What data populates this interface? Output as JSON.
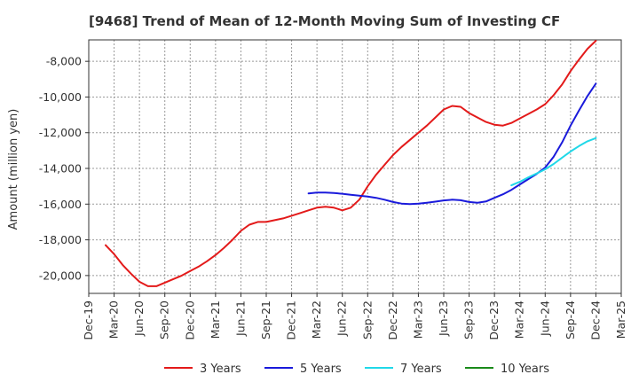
{
  "chart_data": {
    "type": "line",
    "title": "[9468]  Trend of Mean of 12-Month Moving Sum of Investing CF",
    "xlabel": "",
    "ylabel": "Amount (million yen)",
    "ylim": [
      -21000,
      -6800
    ],
    "yticks": [
      -20000,
      -18000,
      -16000,
      -14000,
      -12000,
      -10000,
      -8000
    ],
    "ytick_labels": [
      "-20,000",
      "-18,000",
      "-16,000",
      "-14,000",
      "-12,000",
      "-10,000",
      "-8,000"
    ],
    "xticks": [
      "Dec-19",
      "Mar-20",
      "Jun-20",
      "Sep-20",
      "Dec-20",
      "Mar-21",
      "Jun-21",
      "Sep-21",
      "Dec-21",
      "Mar-22",
      "Jun-22",
      "Sep-22",
      "Dec-22",
      "Mar-23",
      "Jun-23",
      "Sep-23",
      "Dec-23",
      "Mar-24",
      "Jun-24",
      "Sep-24",
      "Dec-24",
      "Mar-25"
    ],
    "grid": true,
    "legend_position": "bottom",
    "series": [
      {
        "name": "3 Years",
        "color": "#e31a1a",
        "x": [
          "2020-02",
          "2020-03",
          "2020-04",
          "2020-05",
          "2020-06",
          "2020-07",
          "2020-08",
          "2020-09",
          "2020-10",
          "2020-11",
          "2020-12",
          "2021-01",
          "2021-02",
          "2021-03",
          "2021-04",
          "2021-05",
          "2021-06",
          "2021-07",
          "2021-08",
          "2021-09",
          "2021-10",
          "2021-11",
          "2021-12",
          "2022-01",
          "2022-02",
          "2022-03",
          "2022-04",
          "2022-05",
          "2022-06",
          "2022-07",
          "2022-08",
          "2022-09",
          "2022-10",
          "2022-11",
          "2022-12",
          "2023-01",
          "2023-02",
          "2023-03",
          "2023-04",
          "2023-05",
          "2023-06",
          "2023-07",
          "2023-08",
          "2023-09",
          "2023-10",
          "2023-11",
          "2023-12",
          "2024-01",
          "2024-02",
          "2024-03",
          "2024-04",
          "2024-05",
          "2024-06",
          "2024-07",
          "2024-08",
          "2024-09",
          "2024-10",
          "2024-11",
          "2024-12"
        ],
        "values": [
          -18300,
          -18800,
          -19400,
          -19900,
          -20350,
          -20600,
          -20600,
          -20400,
          -20200,
          -20000,
          -19750,
          -19500,
          -19200,
          -18850,
          -18450,
          -18000,
          -17500,
          -17150,
          -17000,
          -17000,
          -16900,
          -16800,
          -16650,
          -16500,
          -16350,
          -16200,
          -16150,
          -16200,
          -16350,
          -16200,
          -15750,
          -15000,
          -14350,
          -13800,
          -13250,
          -12800,
          -12400,
          -12000,
          -11600,
          -11150,
          -10700,
          -10500,
          -10550,
          -10900,
          -11150,
          -11400,
          -11550,
          -11600,
          -11450,
          -11200,
          -10950,
          -10700,
          -10400,
          -9900,
          -9300,
          -8550,
          -7900,
          -7300,
          -6850
        ]
      },
      {
        "name": "5 Years",
        "color": "#1a1adb",
        "x": [
          "2022-02",
          "2022-03",
          "2022-04",
          "2022-05",
          "2022-06",
          "2022-07",
          "2022-08",
          "2022-09",
          "2022-10",
          "2022-11",
          "2022-12",
          "2023-01",
          "2023-02",
          "2023-03",
          "2023-04",
          "2023-05",
          "2023-06",
          "2023-07",
          "2023-08",
          "2023-09",
          "2023-10",
          "2023-11",
          "2023-12",
          "2024-01",
          "2024-02",
          "2024-03",
          "2024-04",
          "2024-05",
          "2024-06",
          "2024-07",
          "2024-08",
          "2024-09",
          "2024-10",
          "2024-11",
          "2024-12"
        ],
        "values": [
          -15400,
          -15350,
          -15350,
          -15380,
          -15420,
          -15480,
          -15530,
          -15580,
          -15650,
          -15750,
          -15880,
          -15970,
          -16000,
          -15970,
          -15920,
          -15860,
          -15790,
          -15750,
          -15780,
          -15880,
          -15920,
          -15850,
          -15650,
          -15450,
          -15200,
          -14900,
          -14600,
          -14300,
          -13950,
          -13350,
          -12550,
          -11600,
          -10750,
          -9950,
          -9250
        ]
      },
      {
        "name": "7 Years",
        "color": "#20d8e8",
        "x": [
          "2024-02",
          "2024-03",
          "2024-04",
          "2024-05",
          "2024-06",
          "2024-07",
          "2024-08",
          "2024-09",
          "2024-10",
          "2024-11",
          "2024-12"
        ],
        "values": [
          -14950,
          -14750,
          -14500,
          -14280,
          -14050,
          -13750,
          -13400,
          -13050,
          -12750,
          -12480,
          -12300
        ]
      },
      {
        "name": "10 Years",
        "color": "#1a8a1a",
        "x": [],
        "values": []
      }
    ]
  }
}
